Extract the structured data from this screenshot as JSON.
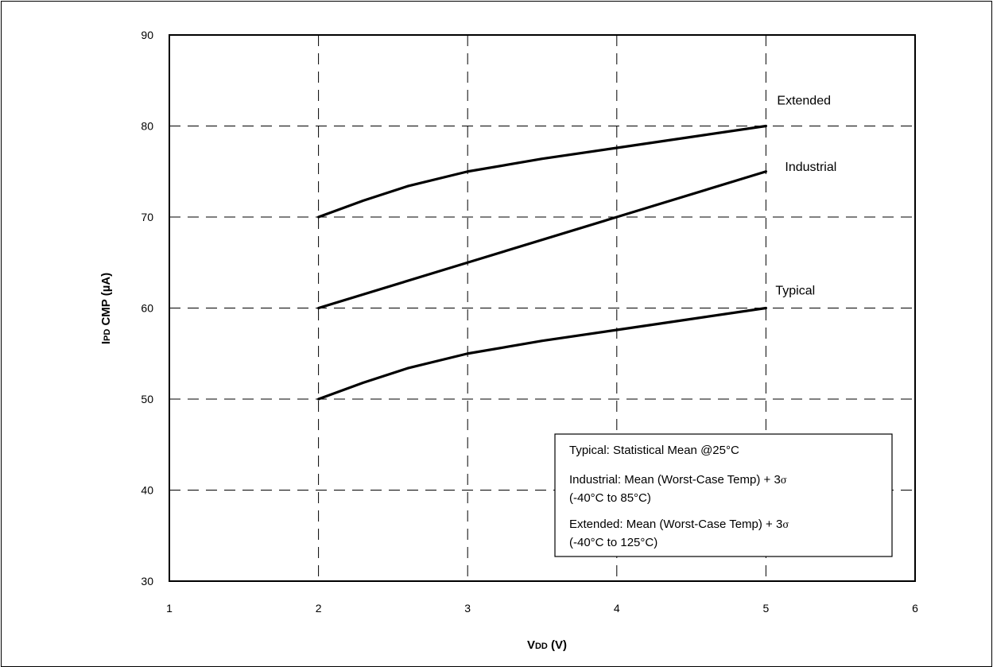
{
  "chart_data": {
    "type": "line",
    "xlabel": {
      "main": "V",
      "sub": "DD",
      "unit": " (V)"
    },
    "ylabel": {
      "main": "I",
      "sub": "PD",
      "unit": " CMP (µA)"
    },
    "xlim": [
      1,
      6
    ],
    "ylim": [
      30,
      90
    ],
    "x_ticks": [
      "1",
      "2",
      "3",
      "4",
      "5",
      "6"
    ],
    "y_ticks": [
      "30",
      "40",
      "50",
      "60",
      "70",
      "80",
      "90"
    ],
    "grid": true,
    "series": [
      {
        "name": "Extended",
        "x": [
          2,
          2.3,
          2.6,
          3,
          3.5,
          4,
          4.5,
          5
        ],
        "y": [
          70,
          71.8,
          73.4,
          75,
          76.4,
          77.6,
          78.8,
          80
        ]
      },
      {
        "name": "Industrial",
        "x": [
          2,
          3,
          4,
          5
        ],
        "y": [
          60,
          65,
          70,
          75
        ]
      },
      {
        "name": "Typical",
        "x": [
          2,
          2.3,
          2.6,
          3,
          3.5,
          4,
          4.5,
          5
        ],
        "y": [
          50,
          51.8,
          53.4,
          55,
          56.4,
          57.6,
          58.8,
          60
        ]
      }
    ],
    "legend": {
      "placement": "bottom-right",
      "lines": [
        {
          "text": "Typical: Statistical Mean @25°C"
        },
        {
          "text": "Industrial: Mean (Worst-Case Temp) +  3",
          "sigma": "σ"
        },
        {
          "text": "(-40°C to 85°C)"
        },
        {
          "text": "Extended: Mean (Worst-Case Temp) + 3",
          "sigma": "σ"
        },
        {
          "text": "(-40°C to 125°C)"
        }
      ]
    }
  }
}
